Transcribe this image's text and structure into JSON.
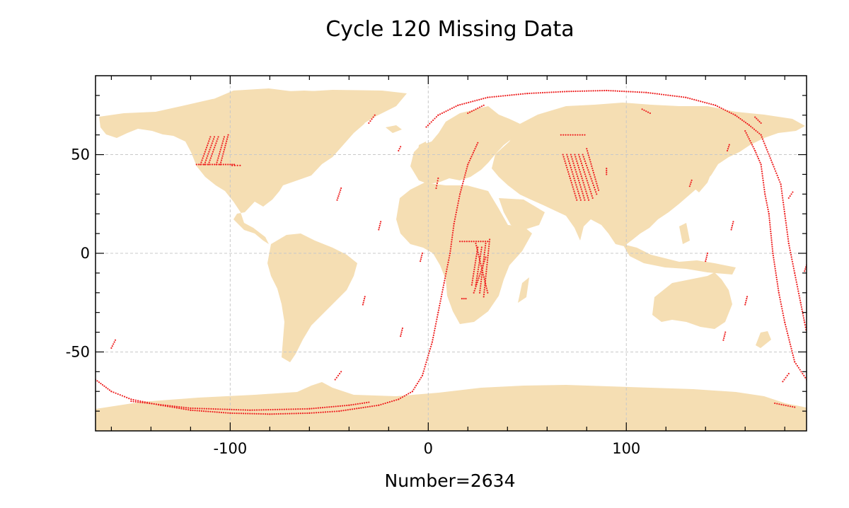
{
  "chart_data": {
    "type": "scatter",
    "title": "Cycle 120 Missing Data",
    "xlabel": "Number=2634",
    "ylabel": "",
    "xlim": [
      -168,
      191
    ],
    "ylim": [
      -90,
      90
    ],
    "xticks": [
      -100,
      0,
      100
    ],
    "xtick_labels": [
      "-100",
      "0",
      "100"
    ],
    "yticks": [
      -50,
      0,
      50
    ],
    "ytick_labels": [
      "-50",
      "0",
      "50"
    ],
    "grid": true,
    "grid_style": "dashed",
    "background_layer": "world land map",
    "colors": {
      "land": "#f5deb3",
      "points": "#ee2222",
      "grid": "#c8c8c8",
      "axes": "#000000"
    },
    "series": [
      {
        "marker": "small dot",
        "segments": [
          {
            "kind": "track",
            "points": [
              [
                -168,
                -64
              ],
              [
                -160,
                -70
              ],
              [
                -150,
                -74
              ],
              [
                -135,
                -77
              ],
              [
                -120,
                -79.5
              ],
              [
                -100,
                -81
              ],
              [
                -80,
                -81.5
              ],
              [
                -60,
                -81
              ],
              [
                -45,
                -80
              ],
              [
                -35,
                -78.5
              ],
              [
                -25,
                -77
              ],
              [
                -15,
                -74
              ],
              [
                -8,
                -70
              ],
              [
                -3,
                -62
              ],
              [
                2,
                -45
              ],
              [
                5,
                -30
              ],
              [
                8,
                -15
              ],
              [
                11,
                0
              ],
              [
                13,
                15
              ],
              [
                16,
                30
              ],
              [
                20,
                45
              ],
              [
                25,
                56
              ]
            ]
          },
          {
            "kind": "track",
            "points": [
              [
                -150,
                -75
              ],
              [
                -120,
                -78.5
              ],
              [
                -90,
                -79.5
              ],
              [
                -60,
                -78.8
              ],
              [
                -40,
                -77
              ],
              [
                -30,
                -75.5
              ]
            ]
          },
          {
            "kind": "track",
            "points": [
              [
                -1,
                64
              ],
              [
                5,
                70
              ],
              [
                15,
                75
              ],
              [
                30,
                79
              ],
              [
                50,
                81
              ],
              [
                70,
                82
              ],
              [
                90,
                82.5
              ],
              [
                110,
                81.5
              ],
              [
                130,
                79
              ],
              [
                145,
                75
              ],
              [
                155,
                70
              ],
              [
                162,
                65
              ],
              [
                168,
                60
              ],
              [
                174,
                45
              ],
              [
                178,
                35
              ],
              [
                180,
                20
              ],
              [
                182,
                5
              ],
              [
                185,
                -10
              ],
              [
                188,
                -25
              ],
              [
                190,
                -35
              ],
              [
                191,
                -40
              ]
            ]
          },
          {
            "kind": "track",
            "points": [
              [
                160,
                62
              ],
              [
                165,
                52
              ],
              [
                168,
                45
              ],
              [
                170,
                30
              ],
              [
                172,
                20
              ],
              [
                174,
                0
              ],
              [
                177,
                -20
              ],
              [
                180,
                -35
              ],
              [
                185,
                -55
              ],
              [
                191,
                -64
              ]
            ]
          },
          {
            "kind": "track",
            "points": [
              [
                20,
                71
              ],
              [
                28,
                75
              ]
            ]
          },
          {
            "kind": "track",
            "points": [
              [
                -30,
                66
              ],
              [
                -27,
                70
              ]
            ]
          },
          {
            "kind": "track",
            "points": [
              [
                108,
                73
              ],
              [
                112,
                71
              ]
            ]
          },
          {
            "kind": "track",
            "points": [
              [
                165,
                69
              ],
              [
                168,
                66
              ]
            ]
          },
          {
            "kind": "track",
            "points": [
              [
                -115,
                45
              ],
              [
                -110,
                59
              ]
            ]
          },
          {
            "kind": "track",
            "points": [
              [
                -113,
                45
              ],
              [
                -108,
                59
              ]
            ]
          },
          {
            "kind": "track",
            "points": [
              [
                -111,
                45
              ],
              [
                -106,
                59
              ]
            ]
          },
          {
            "kind": "track",
            "points": [
              [
                -107,
                45
              ],
              [
                -103,
                59
              ]
            ]
          },
          {
            "kind": "track",
            "points": [
              [
                -105,
                45
              ],
              [
                -101,
                60
              ]
            ]
          },
          {
            "kind": "track",
            "points": [
              [
                -117,
                45
              ],
              [
                -100,
                45
              ]
            ]
          },
          {
            "kind": "track",
            "points": [
              [
                -100,
                45
              ],
              [
                -98,
                45
              ]
            ]
          },
          {
            "kind": "track",
            "points": [
              [
                -99,
                44.5
              ],
              [
                -95,
                44.5
              ]
            ]
          },
          {
            "kind": "track",
            "points": [
              [
                -15,
                52
              ],
              [
                -14,
                54
              ]
            ]
          },
          {
            "kind": "track",
            "points": [
              [
                -46,
                27
              ],
              [
                -44,
                33
              ]
            ]
          },
          {
            "kind": "track",
            "points": [
              [
                -25,
                12
              ],
              [
                -24,
                16
              ]
            ]
          },
          {
            "kind": "track",
            "points": [
              [
                4,
                33
              ],
              [
                5,
                38
              ]
            ]
          },
          {
            "kind": "track",
            "points": [
              [
                -4,
                -4
              ],
              [
                -3,
                0
              ]
            ]
          },
          {
            "kind": "track",
            "points": [
              [
                -33,
                -26
              ],
              [
                -32,
                -22
              ]
            ]
          },
          {
            "kind": "track",
            "points": [
              [
                -14,
                -42
              ],
              [
                -13,
                -38
              ]
            ]
          },
          {
            "kind": "track",
            "points": [
              [
                -47,
                -64
              ],
              [
                -44,
                -60
              ]
            ]
          },
          {
            "kind": "track",
            "points": [
              [
                -160,
                -48
              ],
              [
                -158,
                -44
              ]
            ]
          },
          {
            "kind": "track",
            "points": [
              [
                16,
                6
              ],
              [
                30,
                6
              ]
            ]
          },
          {
            "kind": "track",
            "points": [
              [
                22,
                -16
              ],
              [
                25,
                3
              ]
            ]
          },
          {
            "kind": "track",
            "points": [
              [
                24,
                -16
              ],
              [
                27,
                3
              ]
            ]
          },
          {
            "kind": "track",
            "points": [
              [
                26,
                -20
              ],
              [
                29,
                5
              ]
            ]
          },
          {
            "kind": "track",
            "points": [
              [
                28,
                -22
              ],
              [
                31,
                7
              ]
            ]
          },
          {
            "kind": "track",
            "points": [
              [
                23,
                -20
              ],
              [
                29,
                -2
              ]
            ]
          },
          {
            "kind": "track",
            "points": [
              [
                30,
                -20
              ],
              [
                24,
                5
              ]
            ]
          },
          {
            "kind": "track",
            "points": [
              [
                17,
                -23
              ],
              [
                19,
                -23
              ]
            ]
          },
          {
            "kind": "track",
            "points": [
              [
                67,
                60
              ],
              [
                79,
                60
              ]
            ]
          },
          {
            "kind": "track",
            "points": [
              [
                68,
                50
              ],
              [
                75,
                27
              ]
            ]
          },
          {
            "kind": "track",
            "points": [
              [
                70,
                50
              ],
              [
                77,
                27
              ]
            ]
          },
          {
            "kind": "track",
            "points": [
              [
                72,
                50
              ],
              [
                79,
                27
              ]
            ]
          },
          {
            "kind": "track",
            "points": [
              [
                74,
                50
              ],
              [
                81,
                27
              ]
            ]
          },
          {
            "kind": "track",
            "points": [
              [
                76,
                50
              ],
              [
                83,
                28
              ]
            ]
          },
          {
            "kind": "track",
            "points": [
              [
                78,
                50
              ],
              [
                85,
                30
              ]
            ]
          },
          {
            "kind": "track",
            "points": [
              [
                80,
                53
              ],
              [
                86,
                32
              ]
            ]
          },
          {
            "kind": "track",
            "points": [
              [
                90,
                40
              ],
              [
                90,
                43
              ]
            ]
          },
          {
            "kind": "track",
            "points": [
              [
                151,
                52
              ],
              [
                152,
                55
              ]
            ]
          },
          {
            "kind": "track",
            "points": [
              [
                132,
                34
              ],
              [
                133,
                37
              ]
            ]
          },
          {
            "kind": "track",
            "points": [
              [
                153,
                12
              ],
              [
                154,
                16
              ]
            ]
          },
          {
            "kind": "track",
            "points": [
              [
                140,
                -4
              ],
              [
                141,
                0
              ]
            ]
          },
          {
            "kind": "track",
            "points": [
              [
                160,
                -26
              ],
              [
                161,
                -22
              ]
            ]
          },
          {
            "kind": "track",
            "points": [
              [
                149,
                -44
              ],
              [
                150,
                -40
              ]
            ]
          },
          {
            "kind": "track",
            "points": [
              [
                179,
                -65
              ],
              [
                182,
                -61
              ]
            ]
          },
          {
            "kind": "track",
            "points": [
              [
                175,
                -76
              ],
              [
                185,
                -78
              ]
            ]
          },
          {
            "kind": "track",
            "points": [
              [
                182,
                28
              ],
              [
                184,
                31
              ]
            ]
          },
          {
            "kind": "track",
            "points": [
              [
                190,
                -9
              ],
              [
                191,
                -6
              ]
            ]
          }
        ]
      }
    ]
  }
}
